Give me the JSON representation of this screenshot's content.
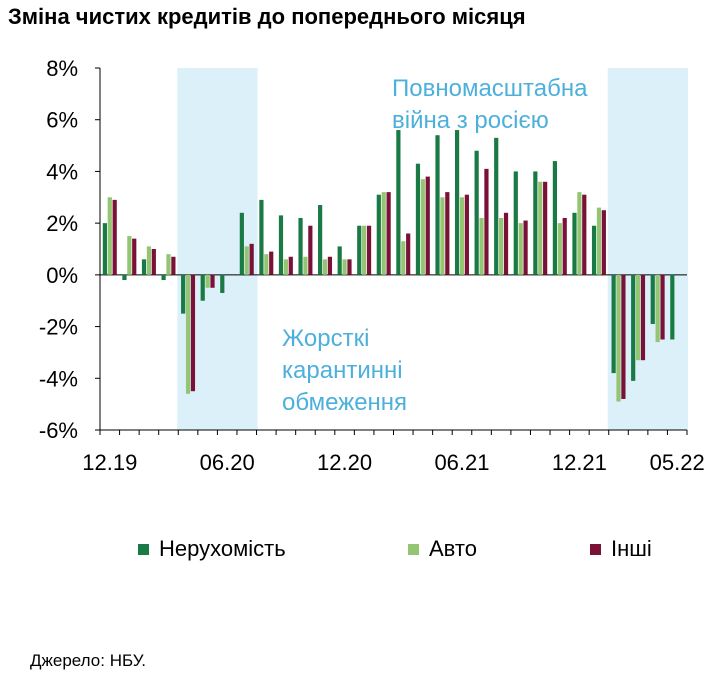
{
  "page": {
    "title": "Зміна чистих кредитів до попереднього місяця",
    "source": "Джерело: НБУ."
  },
  "chart_data": {
    "type": "bar",
    "title": "Зміна чистих кредитів до попереднього місяця",
    "ylim": [
      -6,
      8
    ],
    "yticks": [
      "-6%",
      "-4%",
      "-2%",
      "0%",
      "2%",
      "4%",
      "6%",
      "8%"
    ],
    "xtick_labels": [
      {
        "label": "12.19",
        "index": 0
      },
      {
        "label": "06.20",
        "index": 6
      },
      {
        "label": "12.20",
        "index": 12
      },
      {
        "label": "06.21",
        "index": 18
      },
      {
        "label": "12.21",
        "index": 24
      },
      {
        "label": "05.22",
        "index": 29
      }
    ],
    "categories": [
      "12.19",
      "01.20",
      "02.20",
      "03.20",
      "04.20",
      "05.20",
      "06.20",
      "07.20",
      "08.20",
      "09.20",
      "10.20",
      "11.20",
      "12.20",
      "01.21",
      "02.21",
      "03.21",
      "04.21",
      "05.21",
      "06.21",
      "07.21",
      "08.21",
      "09.21",
      "10.21",
      "11.21",
      "12.21",
      "01.22",
      "02.22",
      "03.22",
      "04.22",
      "05.22"
    ],
    "series": [
      {
        "name": "Нерухомість",
        "color": "#1a7a46",
        "values": [
          2.0,
          -0.2,
          0.6,
          -0.2,
          -1.5,
          -1.0,
          -0.7,
          2.4,
          2.9,
          2.3,
          2.2,
          2.7,
          1.1,
          1.9,
          3.1,
          5.6,
          4.3,
          5.4,
          5.6,
          4.8,
          5.3,
          4.0,
          4.0,
          4.4,
          2.4,
          1.9,
          -3.8,
          -4.1,
          -1.9,
          -2.5
        ]
      },
      {
        "name": "Авто",
        "color": "#93c572",
        "values": [
          3.0,
          1.5,
          1.1,
          0.8,
          -4.6,
          -0.5,
          0.0,
          1.1,
          0.8,
          0.6,
          0.7,
          0.6,
          0.6,
          1.9,
          3.2,
          1.3,
          3.7,
          3.0,
          3.0,
          2.2,
          2.2,
          2.0,
          3.6,
          2.0,
          3.2,
          2.6,
          -4.9,
          -3.3,
          -2.6,
          0.0
        ]
      },
      {
        "name": "Інші",
        "color": "#7a1238",
        "values": [
          2.9,
          1.4,
          1.0,
          0.7,
          -4.5,
          -0.5,
          0.0,
          1.2,
          0.9,
          0.7,
          1.9,
          0.7,
          0.6,
          1.9,
          3.2,
          1.6,
          3.8,
          3.2,
          3.1,
          4.1,
          2.4,
          2.1,
          3.6,
          2.2,
          3.1,
          2.5,
          -4.8,
          -3.3,
          -2.5,
          0.0
        ]
      }
    ],
    "shaded_periods": [
      {
        "from_index": 4,
        "to_index": 7,
        "label_lines": [
          "Жорсткі",
          "карантинні",
          "обмеження"
        ]
      },
      {
        "from_index": 26,
        "to_index": 29,
        "label_lines": [
          "Повномасштабна",
          "війна з росією"
        ]
      }
    ],
    "shade_color": "#dcf0fa",
    "annotation_color": "#4db0dc",
    "legend_position": "bottom"
  }
}
